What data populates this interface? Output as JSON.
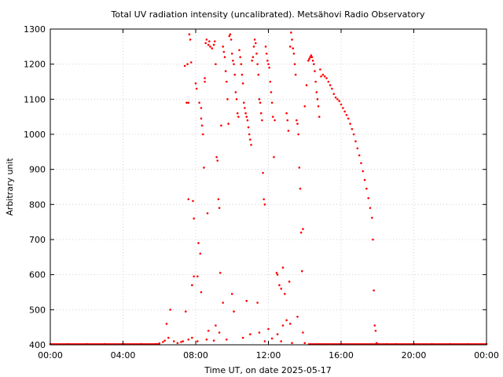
{
  "chart_data": {
    "type": "scatter",
    "title": "Total UV radiation intensity (uncalibrated). Metsähovi Radio Observatory",
    "xlabel": "Time UT, on date 2025-05-17",
    "ylabel": "Arbitrary unit",
    "x_unit": "hours UT",
    "xlim": [
      0,
      24
    ],
    "ylim": [
      400,
      1300
    ],
    "x_ticks": [
      {
        "value": 0,
        "label": "00:00"
      },
      {
        "value": 4,
        "label": "04:00"
      },
      {
        "value": 8,
        "label": "08:00"
      },
      {
        "value": 12,
        "label": "12:00"
      },
      {
        "value": 16,
        "label": "16:00"
      },
      {
        "value": 20,
        "label": "20:00"
      },
      {
        "value": 24,
        "label": "00:00"
      }
    ],
    "y_ticks": [
      400,
      500,
      600,
      700,
      800,
      900,
      1000,
      1100,
      1200,
      1300
    ],
    "grid": true,
    "marker_color": "#ff0000",
    "series": [
      {
        "values": [
          [
            0.0,
            402
          ],
          [
            1.0,
            402
          ],
          [
            2.0,
            402
          ],
          [
            3.0,
            402
          ],
          [
            4.0,
            402
          ],
          [
            5.0,
            402
          ],
          [
            5.8,
            402
          ],
          [
            6.0,
            404
          ],
          [
            6.2,
            408
          ],
          [
            6.3,
            412
          ],
          [
            6.4,
            460
          ],
          [
            6.5,
            420
          ],
          [
            6.6,
            500
          ],
          [
            6.8,
            410
          ],
          [
            7.0,
            405
          ],
          [
            7.2,
            408
          ],
          [
            7.3,
            410
          ],
          [
            7.4,
            1195
          ],
          [
            7.45,
            495
          ],
          [
            7.5,
            1090
          ],
          [
            7.55,
            1200
          ],
          [
            7.6,
            1090
          ],
          [
            7.6,
            815
          ],
          [
            7.65,
            1285
          ],
          [
            7.7,
            1270
          ],
          [
            7.75,
            1205
          ],
          [
            7.8,
            570
          ],
          [
            7.85,
            810
          ],
          [
            7.9,
            595
          ],
          [
            7.9,
            760
          ],
          [
            8.0,
            1145
          ],
          [
            8.05,
            1130
          ],
          [
            8.1,
            595
          ],
          [
            8.15,
            690
          ],
          [
            8.2,
            1090
          ],
          [
            8.25,
            660
          ],
          [
            8.3,
            1075
          ],
          [
            8.3,
            1045
          ],
          [
            8.35,
            1025
          ],
          [
            8.4,
            1000
          ],
          [
            8.45,
            905
          ],
          [
            8.5,
            1160
          ],
          [
            8.5,
            1150
          ],
          [
            8.55,
            1260
          ],
          [
            8.6,
            1270
          ],
          [
            8.65,
            775
          ],
          [
            8.7,
            1255
          ],
          [
            8.75,
            1265
          ],
          [
            8.8,
            1250
          ],
          [
            8.9,
            1245
          ],
          [
            9.0,
            1255
          ],
          [
            9.05,
            1265
          ],
          [
            9.1,
            1200
          ],
          [
            9.15,
            935
          ],
          [
            9.2,
            925
          ],
          [
            9.25,
            815
          ],
          [
            9.3,
            790
          ],
          [
            9.35,
            605
          ],
          [
            9.4,
            1025
          ],
          [
            9.5,
            1250
          ],
          [
            9.55,
            1235
          ],
          [
            9.6,
            1220
          ],
          [
            9.65,
            1180
          ],
          [
            9.7,
            1150
          ],
          [
            9.75,
            1100
          ],
          [
            9.8,
            1030
          ],
          [
            9.85,
            1280
          ],
          [
            9.9,
            1285
          ],
          [
            9.95,
            1270
          ],
          [
            10.0,
            1230
          ],
          [
            10.05,
            1210
          ],
          [
            10.1,
            1200
          ],
          [
            10.15,
            1170
          ],
          [
            10.2,
            1120
          ],
          [
            10.25,
            1100
          ],
          [
            10.3,
            1060
          ],
          [
            10.35,
            1050
          ],
          [
            10.4,
            1240
          ],
          [
            10.45,
            1220
          ],
          [
            10.5,
            1200
          ],
          [
            10.55,
            1170
          ],
          [
            10.6,
            1145
          ],
          [
            10.65,
            1090
          ],
          [
            10.7,
            1075
          ],
          [
            10.75,
            1060
          ],
          [
            10.8,
            1050
          ],
          [
            10.85,
            1040
          ],
          [
            10.9,
            1020
          ],
          [
            10.95,
            1000
          ],
          [
            11.0,
            985
          ],
          [
            11.05,
            970
          ],
          [
            11.1,
            1210
          ],
          [
            11.15,
            1220
          ],
          [
            11.2,
            1250
          ],
          [
            11.25,
            1270
          ],
          [
            11.3,
            1260
          ],
          [
            11.35,
            1230
          ],
          [
            11.4,
            1200
          ],
          [
            11.45,
            1170
          ],
          [
            11.5,
            1100
          ],
          [
            11.55,
            1090
          ],
          [
            11.6,
            1060
          ],
          [
            11.65,
            1040
          ],
          [
            11.7,
            890
          ],
          [
            11.75,
            815
          ],
          [
            11.8,
            800
          ],
          [
            11.85,
            1250
          ],
          [
            11.9,
            1230
          ],
          [
            11.95,
            1210
          ],
          [
            12.0,
            1200
          ],
          [
            12.05,
            1190
          ],
          [
            12.1,
            1150
          ],
          [
            12.15,
            1120
          ],
          [
            12.2,
            1090
          ],
          [
            12.25,
            1050
          ],
          [
            12.3,
            935
          ],
          [
            12.35,
            1040
          ],
          [
            12.45,
            605
          ],
          [
            12.5,
            600
          ],
          [
            12.6,
            570
          ],
          [
            12.7,
            560
          ],
          [
            12.8,
            620
          ],
          [
            12.9,
            545
          ],
          [
            13.0,
            1060
          ],
          [
            13.05,
            1040
          ],
          [
            13.1,
            1010
          ],
          [
            13.15,
            580
          ],
          [
            13.2,
            1250
          ],
          [
            13.25,
            1290
          ],
          [
            13.3,
            1270
          ],
          [
            13.35,
            1245
          ],
          [
            13.4,
            1230
          ],
          [
            13.45,
            1200
          ],
          [
            13.5,
            1170
          ],
          [
            13.55,
            1040
          ],
          [
            13.6,
            1030
          ],
          [
            13.65,
            1000
          ],
          [
            13.7,
            905
          ],
          [
            13.75,
            845
          ],
          [
            13.8,
            720
          ],
          [
            13.85,
            610
          ],
          [
            13.9,
            730
          ],
          [
            14.0,
            1080
          ],
          [
            14.1,
            1140
          ],
          [
            14.2,
            1210
          ],
          [
            14.25,
            1215
          ],
          [
            14.3,
            1220
          ],
          [
            14.35,
            1225
          ],
          [
            14.4,
            1220
          ],
          [
            14.45,
            1210
          ],
          [
            14.5,
            1200
          ],
          [
            14.55,
            1180
          ],
          [
            14.6,
            1150
          ],
          [
            14.65,
            1120
          ],
          [
            14.7,
            1100
          ],
          [
            14.75,
            1080
          ],
          [
            14.8,
            1050
          ],
          [
            14.85,
            1185
          ],
          [
            14.9,
            1165
          ],
          [
            15.0,
            1170
          ],
          [
            15.1,
            1165
          ],
          [
            15.2,
            1160
          ],
          [
            15.3,
            1150
          ],
          [
            15.4,
            1140
          ],
          [
            15.5,
            1130
          ],
          [
            15.6,
            1115
          ],
          [
            15.7,
            1105
          ],
          [
            15.8,
            1100
          ],
          [
            15.9,
            1095
          ],
          [
            16.0,
            1085
          ],
          [
            16.1,
            1075
          ],
          [
            16.2,
            1065
          ],
          [
            16.3,
            1055
          ],
          [
            16.4,
            1045
          ],
          [
            16.5,
            1030
          ],
          [
            16.6,
            1015
          ],
          [
            16.7,
            1000
          ],
          [
            16.8,
            980
          ],
          [
            16.9,
            960
          ],
          [
            17.0,
            940
          ],
          [
            17.1,
            918
          ],
          [
            17.2,
            895
          ],
          [
            17.3,
            870
          ],
          [
            17.4,
            845
          ],
          [
            17.5,
            818
          ],
          [
            17.6,
            790
          ],
          [
            17.7,
            762
          ],
          [
            17.75,
            700
          ],
          [
            17.8,
            555
          ],
          [
            17.85,
            455
          ],
          [
            17.9,
            440
          ],
          [
            17.95,
            405
          ],
          [
            18.0,
            403
          ],
          [
            18.5,
            402
          ],
          [
            19.0,
            402
          ],
          [
            20.0,
            402
          ],
          [
            21.0,
            402
          ],
          [
            22.0,
            402
          ],
          [
            23.0,
            402
          ],
          [
            24.0,
            402
          ],
          [
            8.1,
            410
          ],
          [
            8.6,
            415
          ],
          [
            9.0,
            412
          ],
          [
            9.7,
            415
          ],
          [
            10.6,
            420
          ],
          [
            11.0,
            430
          ],
          [
            11.5,
            435
          ],
          [
            12.0,
            445
          ],
          [
            12.5,
            430
          ],
          [
            12.8,
            455
          ],
          [
            13.0,
            470
          ],
          [
            13.3,
            405
          ],
          [
            13.6,
            480
          ],
          [
            13.9,
            435
          ],
          [
            14.0,
            405
          ],
          [
            12.2,
            418
          ],
          [
            12.7,
            410
          ],
          [
            9.1,
            455
          ],
          [
            10.1,
            495
          ],
          [
            10.8,
            525
          ],
          [
            11.4,
            520
          ],
          [
            9.5,
            520
          ],
          [
            10.0,
            545
          ],
          [
            11.8,
            410
          ],
          [
            7.6,
            415
          ],
          [
            7.8,
            420
          ],
          [
            8.3,
            550
          ],
          [
            8.7,
            440
          ],
          [
            9.3,
            435
          ],
          [
            13.2,
            460
          ]
        ]
      }
    ]
  }
}
